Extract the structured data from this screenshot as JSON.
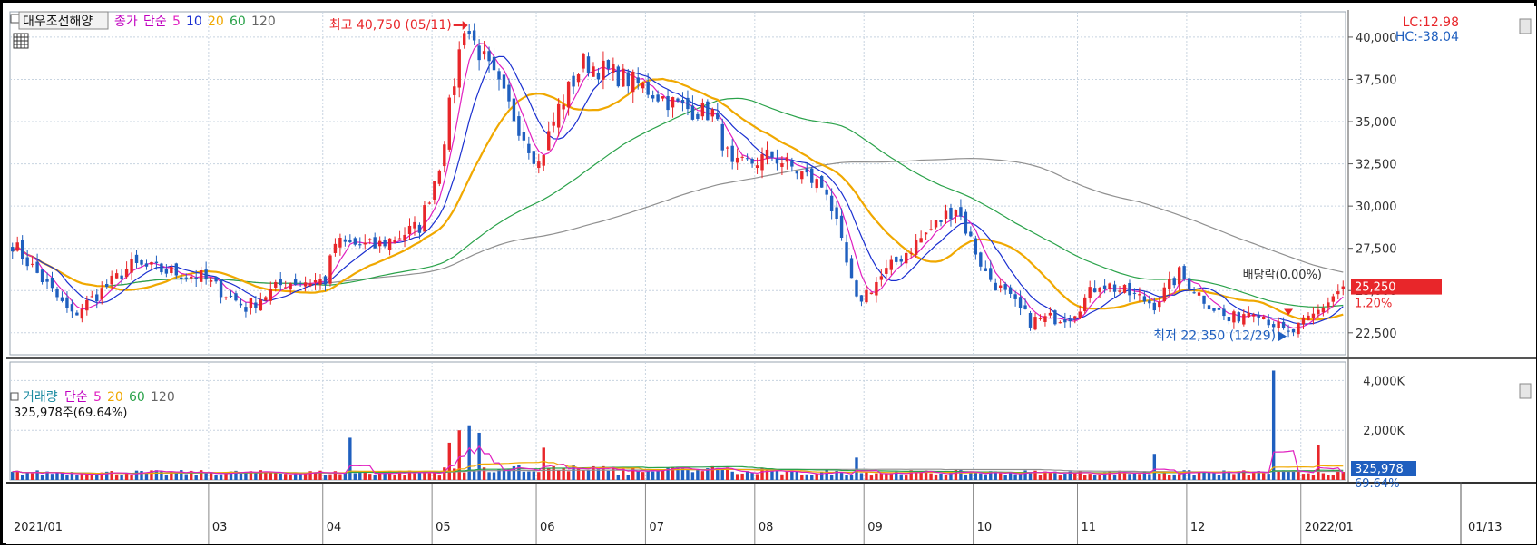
{
  "header": {
    "stock_name": "대우조선해양",
    "price_legend": [
      "종가",
      "단순",
      "5",
      "10",
      "20",
      "60",
      "120"
    ],
    "volume_legend": [
      "거래량",
      "단순",
      "5",
      "20",
      "60",
      "120"
    ],
    "volume_current": "325,978주(69.64%)",
    "lc": "LC:12.98",
    "hc": "HC:-38.04"
  },
  "colors": {
    "up": "#e8262a",
    "down": "#1f5fbf",
    "ma5": "#e020c0",
    "ma10": "#1a2fd0",
    "ma20": "#f0a800",
    "ma60": "#2aa24a",
    "ma120": "#909090",
    "grid": "#c8d4e0",
    "price_box": "#e8262a",
    "volume_box": "#1f5fbf"
  },
  "annotations": {
    "high": "최고 40,750 (05/11)",
    "low": "최저 22,350 (12/29)",
    "dividend": "배당락(0.00%)",
    "price_box": "25,250",
    "price_pct": "1.20%",
    "volume_box": "325,978",
    "volume_pct": "69.64%"
  },
  "chart_data": [
    {
      "type": "candlestick",
      "title": "대우조선해양",
      "y_ticks": [
        "40,000",
        "37,500",
        "35,000",
        "32,500",
        "30,000",
        "27,500",
        "25,000",
        "22,500"
      ],
      "ylim": [
        21200,
        41500
      ],
      "x_ticks": [
        "2021/01",
        "03",
        "04",
        "05",
        "06",
        "07",
        "08",
        "09",
        "10",
        "11",
        "12",
        "2022/01",
        "01/13"
      ],
      "anchors": [
        [
          "2021/01/04",
          27800
        ],
        [
          "2021/01/20",
          23500
        ],
        [
          "2021/02/05",
          26500
        ],
        [
          "2021/02/25",
          25800
        ],
        [
          "2021/03/10",
          24000
        ],
        [
          "2021/03/20",
          25500
        ],
        [
          "2021/04/01",
          25600
        ],
        [
          "2021/04/05",
          27800
        ],
        [
          "2021/04/15",
          27600
        ],
        [
          "2021/04/28",
          28800
        ],
        [
          "2021/05/04",
          32500
        ],
        [
          "2021/05/11",
          40750
        ],
        [
          "2021/05/20",
          37000
        ],
        [
          "2021/06/01",
          32500
        ],
        [
          "2021/06/05",
          35800
        ],
        [
          "2021/06/14",
          38500
        ],
        [
          "2021/06/25",
          37500
        ],
        [
          "2021/07/10",
          35800
        ],
        [
          "2021/07/20",
          35500
        ],
        [
          "2021/07/26",
          32200
        ],
        [
          "2021/08/05",
          33000
        ],
        [
          "2021/08/20",
          31000
        ],
        [
          "2021/08/30",
          24300
        ],
        [
          "2021/09/10",
          27000
        ],
        [
          "2021/09/25",
          30000
        ],
        [
          "2021/10/05",
          26000
        ],
        [
          "2021/10/18",
          23200
        ],
        [
          "2021/10/28",
          23500
        ],
        [
          "2021/11/05",
          25500
        ],
        [
          "2021/11/20",
          24200
        ],
        [
          "2021/11/28",
          26000
        ],
        [
          "2021/12/05",
          24500
        ],
        [
          "2021/12/12",
          23200
        ],
        [
          "2021/12/20",
          24000
        ],
        [
          "2021/12/29",
          22350
        ],
        [
          "2022/01/05",
          23500
        ],
        [
          "2022/01/13",
          25250
        ]
      ],
      "ma_series": [
        "5",
        "10",
        "20",
        "60",
        "120"
      ]
    },
    {
      "type": "bar",
      "title": "거래량",
      "y_ticks": [
        "4,000K",
        "2,000K"
      ],
      "ylim": [
        0,
        4600
      ],
      "unit": "K",
      "spikes": [
        [
          "2021/04/08",
          1700
        ],
        [
          "2021/05/06",
          1500
        ],
        [
          "2021/05/10",
          2000
        ],
        [
          "2021/05/12",
          2200
        ],
        [
          "2021/05/14",
          1900
        ],
        [
          "2021/06/02",
          1300
        ],
        [
          "2021/08/30",
          900
        ],
        [
          "2021/11/22",
          1050
        ],
        [
          "2021/12/24",
          4400
        ],
        [
          "2022/01/06",
          1400
        ]
      ],
      "current": 325.978
    }
  ]
}
